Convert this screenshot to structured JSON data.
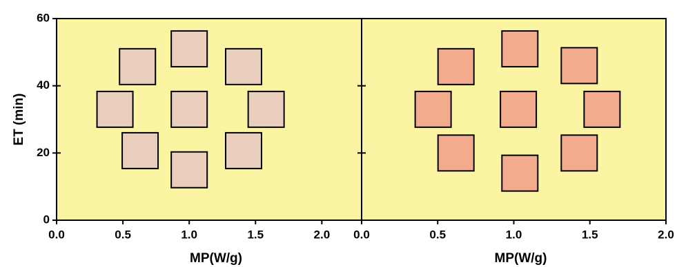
{
  "chart_data": [
    {
      "type": "scatter",
      "xlabel": "MP(W/g)",
      "ylabel": "ET (min)",
      "x": [
        0.61,
        1.0,
        1.41,
        0.44,
        1.0,
        1.58,
        0.63,
        1.0,
        1.41
      ],
      "values": [
        45.7,
        51,
        45.7,
        33,
        33,
        33,
        20.7,
        15,
        20.7
      ],
      "xlim": [
        0,
        2.3
      ],
      "xticks": [
        {
          "value": 0,
          "label": "0.0"
        },
        0.5,
        {
          "value": 1,
          "label": "1.0"
        },
        1.5,
        {
          "value": 2,
          "label": "2.0"
        }
      ],
      "ylim": [
        0,
        60
      ],
      "yticks": [
        0,
        20,
        40,
        60
      ],
      "show_ytick_labels": true,
      "color": "#e9cdbd",
      "background": "#fbf5a3"
    },
    {
      "type": "scatter",
      "xlabel": "MP(W/g)",
      "x": [
        0.62,
        1.04,
        1.43,
        0.47,
        1.03,
        1.58,
        0.62,
        1.04,
        1.43
      ],
      "values": [
        45.7,
        51,
        46,
        33,
        33,
        33,
        20,
        14,
        20
      ],
      "xlim": [
        0,
        2.0
      ],
      "xticks": [
        {
          "value": 0,
          "label": "0.0"
        },
        0.5,
        {
          "value": 1,
          "label": "1.0"
        },
        1.5,
        {
          "value": 2,
          "label": "2.0"
        }
      ],
      "ylim": [
        0,
        60
      ],
      "yticks": [
        20,
        40
      ],
      "show_ytick_labels": false,
      "color": "#f2ab8d",
      "background": "#fbf5a3"
    }
  ]
}
